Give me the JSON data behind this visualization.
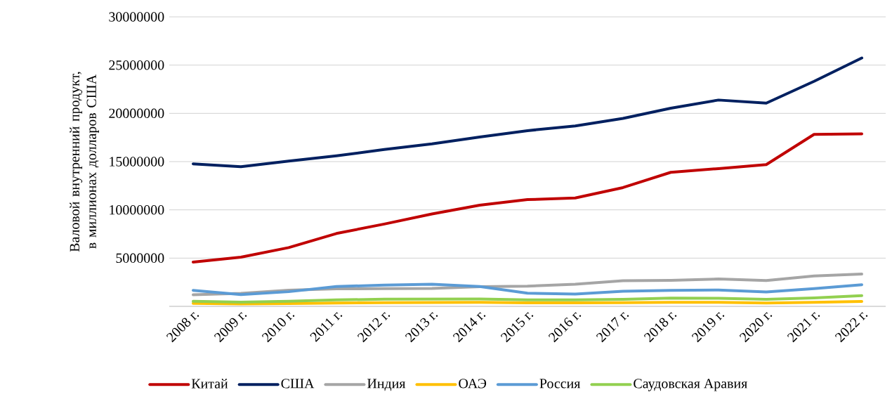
{
  "chart_data": {
    "type": "line",
    "ylabel": "Валовой внутренний продукт, в миллионах долларов США",
    "categories": [
      "2008 г.",
      "2009 г.",
      "2010 г.",
      "2011 г.",
      "2012 г.",
      "2013 г.",
      "2014 г.",
      "2015 г.",
      "2016 г.",
      "2017 г.",
      "2018 г.",
      "2019 г.",
      "2020 г.",
      "2021 г.",
      "2022 г."
    ],
    "series": [
      {
        "name": "Китай",
        "color": "#c00000",
        "values": [
          4590000,
          5100000,
          6090000,
          7550000,
          8530000,
          9570000,
          10480000,
          11060000,
          11230000,
          12310000,
          13890000,
          14280000,
          14690000,
          17820000,
          17880000
        ]
      },
      {
        "name": "США",
        "color": "#002060",
        "values": [
          14770000,
          14480000,
          15050000,
          15600000,
          16250000,
          16840000,
          17550000,
          18210000,
          18700000,
          19480000,
          20530000,
          21380000,
          21060000,
          23320000,
          25740000
        ]
      },
      {
        "name": "Индия",
        "color": "#a5a5a5",
        "values": [
          1200000,
          1340000,
          1680000,
          1820000,
          1830000,
          1860000,
          2040000,
          2100000,
          2290000,
          2650000,
          2700000,
          2840000,
          2670000,
          3150000,
          3350000
        ]
      },
      {
        "name": "ОАЭ",
        "color": "#ffc000",
        "values": [
          315000,
          254000,
          300000,
          350000,
          384000,
          400000,
          414000,
          370000,
          369000,
          390000,
          427000,
          418000,
          349000,
          415000,
          507000
        ]
      },
      {
        "name": "Россия",
        "color": "#5b9bd5",
        "values": [
          1660000,
          1220000,
          1520000,
          2050000,
          2210000,
          2290000,
          2060000,
          1360000,
          1280000,
          1570000,
          1660000,
          1690000,
          1490000,
          1840000,
          2240000
        ]
      },
      {
        "name": "Саудовская Аравия",
        "color": "#92d050",
        "values": [
          520000,
          430000,
          530000,
          670000,
          740000,
          750000,
          760000,
          670000,
          670000,
          720000,
          850000,
          840000,
          730000,
          870000,
          1110000
        ]
      }
    ],
    "ylim": [
      0,
      30000000
    ],
    "yticks": [
      {
        "value": 0,
        "label": null
      },
      5000000,
      10000000,
      15000000,
      20000000,
      25000000,
      30000000
    ],
    "grid": "y",
    "legend": "bottom",
    "marker": "none",
    "line_style": "solid"
  }
}
